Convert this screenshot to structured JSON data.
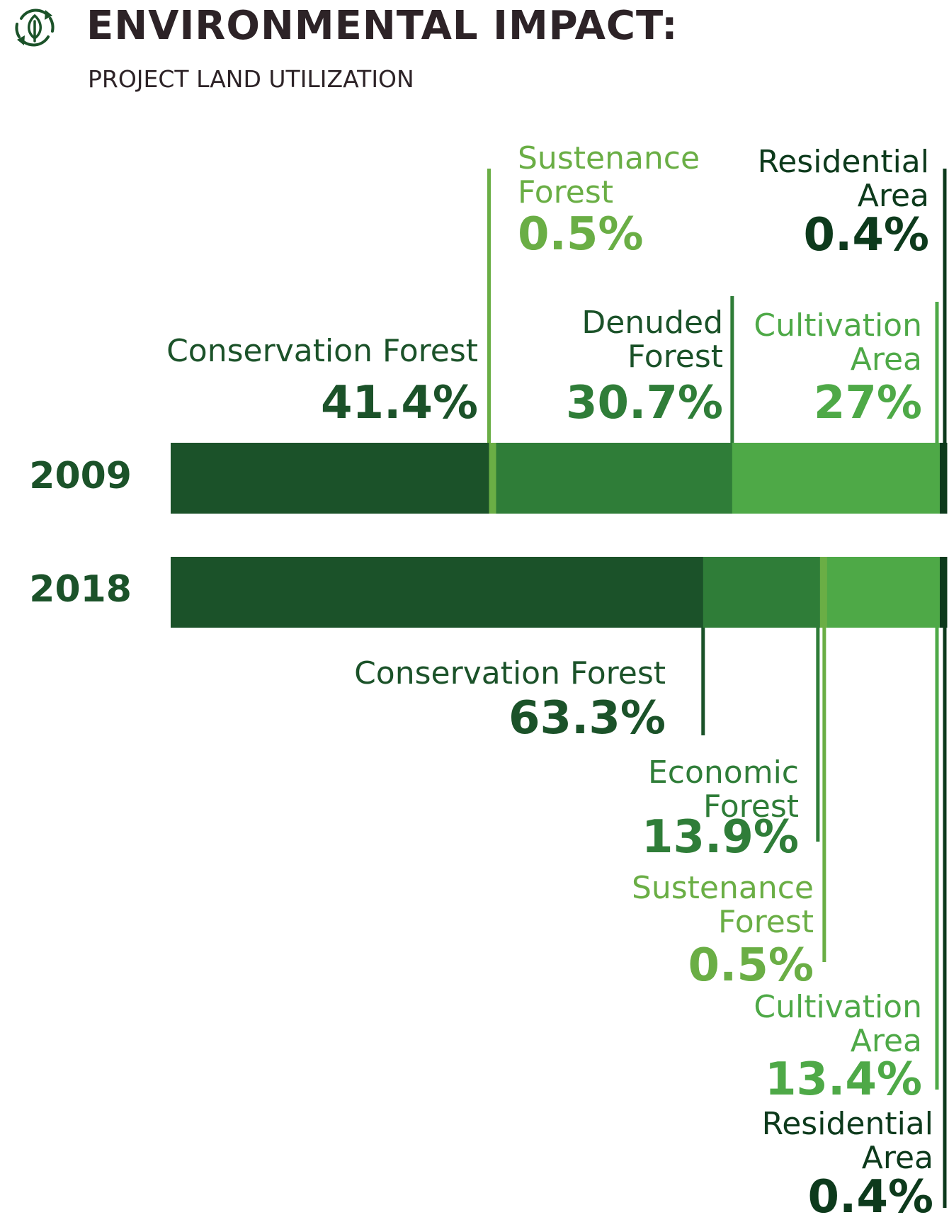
{
  "header": {
    "title": "ENVIRONMENTAL IMPACT:",
    "subtitle": "PROJECT LAND UTILIZATION",
    "icon": "recycle-leaf-icon"
  },
  "colors": {
    "dark_green": "#1b5229",
    "medium_green": "#2f7d38",
    "light_green": "#4ea947",
    "lime_green": "#6aae45",
    "darkest_green": "#0d3a1c",
    "heading_text": "#2d2327"
  },
  "chart_data": {
    "type": "stacked-bar",
    "orientation": "horizontal",
    "categories": [
      "2009",
      "2018"
    ],
    "bars": [
      {
        "year": "2009",
        "segments": [
          {
            "label": "Conservation Forest",
            "value": 41.4,
            "value_text": "41.4%",
            "color": "#1b5229",
            "label_color": "#1b5229",
            "value_color": "#1b5229"
          },
          {
            "label": "Sustenance Forest",
            "value": 0.5,
            "value_text": "0.5%",
            "color": "#6aae45",
            "label_color": "#6aae45",
            "value_color": "#6aae45"
          },
          {
            "label": "Denuded Forest",
            "value": 30.7,
            "value_text": "30.7%",
            "color": "#2f7d38",
            "label_color": "#1b5229",
            "value_color": "#2f7d38"
          },
          {
            "label": "Cultivation Area",
            "value": 27,
            "value_text": "27%",
            "color": "#4ea947",
            "label_color": "#4ea947",
            "value_color": "#4ea947"
          },
          {
            "label": "Residential Area",
            "value": 0.4,
            "value_text": "0.4%",
            "color": "#0d3a1c",
            "label_color": "#0d3a1c",
            "value_color": "#0d3a1c"
          }
        ]
      },
      {
        "year": "2018",
        "segments": [
          {
            "label": "Conservation Forest",
            "value": 63.3,
            "value_text": "63.3%",
            "color": "#1b5229",
            "label_color": "#1b5229",
            "value_color": "#1b5229"
          },
          {
            "label": "Economic Forest",
            "value": 13.9,
            "value_text": "13.9%",
            "color": "#2f7d38",
            "label_color": "#2f7d38",
            "value_color": "#2f7d38"
          },
          {
            "label": "Sustenance Forest",
            "value": 0.5,
            "value_text": "0.5%",
            "color": "#6aae45",
            "label_color": "#6aae45",
            "value_color": "#6aae45"
          },
          {
            "label": "Cultivation Area",
            "value": 13.4,
            "value_text": "13.4%",
            "color": "#4ea947",
            "label_color": "#4ea947",
            "value_color": "#4ea947"
          },
          {
            "label": "Residential Area",
            "value": 0.4,
            "value_text": "0.4%",
            "color": "#0d3a1c",
            "label_color": "#0d3a1c",
            "value_color": "#0d3a1c"
          }
        ]
      }
    ]
  }
}
